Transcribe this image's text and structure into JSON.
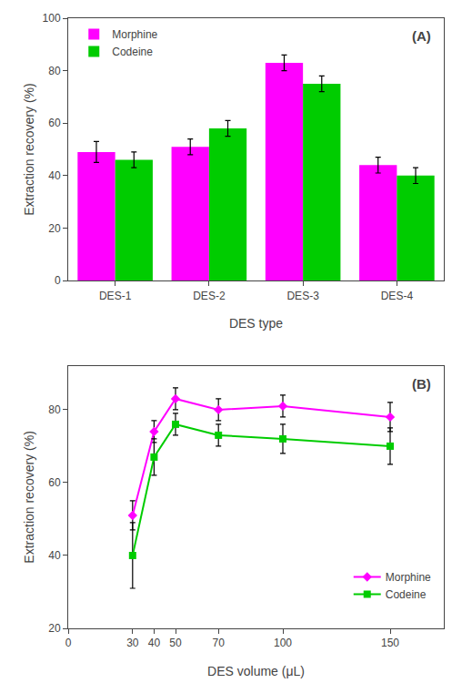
{
  "chart_data": [
    {
      "type": "bar",
      "xlabel": "DES type",
      "ylabel": "Extraction recovery (%)",
      "categories": [
        "DES-1",
        "DES-2",
        "DES-3",
        "DES-4"
      ],
      "series": [
        {
          "name": "Morphine",
          "color": "#FF00FF",
          "values": [
            49,
            51,
            83,
            44
          ],
          "errors": [
            4,
            3,
            3,
            3
          ]
        },
        {
          "name": "Codeine",
          "color": "#00CC00",
          "values": [
            46,
            58,
            75,
            40
          ],
          "errors": [
            3,
            3,
            3,
            3
          ]
        }
      ],
      "ylim": [
        0,
        100
      ],
      "yticks": [
        0,
        20,
        40,
        60,
        80,
        100
      ],
      "grid": false,
      "legend": "upper left",
      "annotations": [
        "(A)"
      ]
    },
    {
      "type": "line",
      "xlabel": "DES volume (μL)",
      "ylabel": "Extraction recovery (%)",
      "x": [
        30,
        40,
        50,
        70,
        100,
        150
      ],
      "series": [
        {
          "name": "Morphine",
          "color": "#FF00FF",
          "marker": "diamond",
          "line_style": "solid",
          "values": [
            51,
            74,
            83,
            80,
            81,
            78
          ],
          "errors": [
            4,
            3,
            3,
            3,
            3,
            4
          ]
        },
        {
          "name": "Codeine",
          "color": "#00CC00",
          "marker": "square",
          "line_style": "solid",
          "values": [
            40,
            67,
            76,
            73,
            72,
            70
          ],
          "errors": [
            9,
            5,
            3,
            3,
            4,
            5
          ]
        }
      ],
      "xlim": [
        0,
        175
      ],
      "xticks": [
        0,
        30,
        40,
        50,
        70,
        100,
        150
      ],
      "ylim": [
        20,
        92
      ],
      "yticks": [
        20,
        40,
        60,
        80
      ],
      "grid": false,
      "legend": "lower right",
      "annotations": [
        "(B)"
      ]
    }
  ]
}
